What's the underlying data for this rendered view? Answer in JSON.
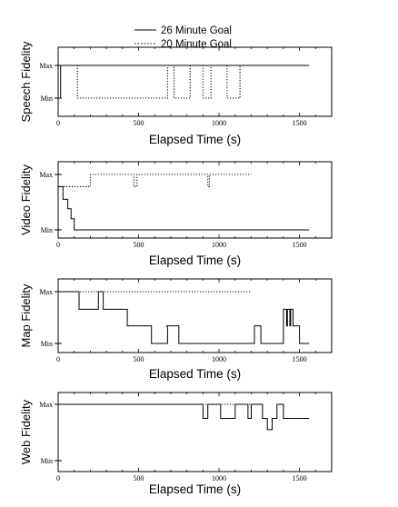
{
  "legend": {
    "items": [
      {
        "label": "26 Minute Goal",
        "style": "solid"
      },
      {
        "label": "20 Minute Goal",
        "style": "dotted"
      }
    ]
  },
  "chart_data": [
    {
      "type": "line",
      "ylabel": "Speech Fidelity",
      "xlabel": "Elapsed Time (s)",
      "xlim": [
        0,
        1700
      ],
      "xticks": [
        0,
        500,
        1000,
        1500
      ],
      "ylevels": [
        "Min",
        "Max"
      ],
      "series": [
        {
          "name": "26 Minute Goal",
          "style": "solid",
          "x": [
            0,
            15,
            15,
            1560
          ],
          "y": [
            0,
            0,
            1,
            1
          ]
        },
        {
          "name": "20 Minute Goal",
          "style": "dotted",
          "x": [
            0,
            120,
            120,
            680,
            680,
            720,
            720,
            820,
            820,
            900,
            900,
            950,
            950,
            1050,
            1050,
            1130,
            1130,
            1200
          ],
          "y": [
            1,
            1,
            0,
            0,
            1,
            1,
            0,
            0,
            1,
            1,
            0,
            0,
            1,
            1,
            0,
            0,
            1,
            1
          ]
        }
      ]
    },
    {
      "type": "line",
      "ylabel": "Video Fidelity",
      "xlabel": "Elapsed Time (s)",
      "xlim": [
        0,
        1700
      ],
      "xticks": [
        0,
        500,
        1000,
        1500
      ],
      "ylevels": [
        "Min",
        "Max"
      ],
      "series": [
        {
          "name": "26 Minute Goal",
          "style": "solid",
          "x": [
            0,
            30,
            30,
            60,
            60,
            80,
            80,
            100,
            100,
            1560
          ],
          "y": [
            0.78,
            0.78,
            0.55,
            0.55,
            0.38,
            0.38,
            0.2,
            0.2,
            0,
            0
          ]
        },
        {
          "name": "20 Minute Goal",
          "style": "dotted",
          "x": [
            0,
            200,
            200,
            470,
            470,
            490,
            490,
            930,
            930,
            940,
            940,
            1200
          ],
          "y": [
            0.78,
            0.78,
            1,
            1,
            0.78,
            0.78,
            1,
            1,
            0.78,
            0.78,
            1,
            1
          ]
        }
      ]
    },
    {
      "type": "line",
      "ylabel": "Map Fidelity",
      "xlabel": "Elapsed Time (s)",
      "xlim": [
        0,
        1700
      ],
      "xticks": [
        0,
        500,
        1000,
        1500
      ],
      "ylevels": [
        "Min",
        "Max"
      ],
      "series": [
        {
          "name": "26 Minute Goal",
          "style": "solid",
          "x": [
            0,
            130,
            130,
            250,
            250,
            280,
            280,
            430,
            430,
            580,
            580,
            680,
            680,
            670,
            670,
            750,
            750,
            1220,
            1220,
            1260,
            1260,
            1400,
            1400,
            1420,
            1420,
            1425,
            1425,
            1440,
            1440,
            1445,
            1445,
            1460,
            1460,
            1500,
            1500,
            1560
          ],
          "y": [
            1,
            1,
            0.66,
            0.66,
            1,
            1,
            0.66,
            0.66,
            0.34,
            0.34,
            0,
            0,
            0.34,
            0.34,
            0.34,
            0.34,
            0,
            0,
            0.34,
            0.34,
            0,
            0,
            0.66,
            0.66,
            0.34,
            0.34,
            0.66,
            0.66,
            0.34,
            0.34,
            0.66,
            0.66,
            0.34,
            0.34,
            0,
            0
          ]
        },
        {
          "name": "20 Minute Goal",
          "style": "dotted",
          "x": [
            0,
            1200
          ],
          "y": [
            1,
            1
          ]
        }
      ]
    },
    {
      "type": "line",
      "ylabel": "Web Fidelity",
      "xlabel": "Elapsed Time (s)",
      "xlim": [
        0,
        1700
      ],
      "xticks": [
        0,
        500,
        1000,
        1500
      ],
      "ylevels": [
        "Min",
        "Max"
      ],
      "series": [
        {
          "name": "26 Minute Goal",
          "style": "solid",
          "x": [
            0,
            900,
            900,
            930,
            930,
            1010,
            1010,
            1100,
            1100,
            1180,
            1180,
            1200,
            1200,
            1270,
            1270,
            1300,
            1300,
            1330,
            1330,
            1360,
            1360,
            1400,
            1400,
            1500,
            1500,
            1560
          ],
          "y": [
            1,
            1,
            0.75,
            0.75,
            1,
            1,
            0.75,
            0.75,
            1,
            1,
            0.75,
            0.75,
            1,
            1,
            0.75,
            0.75,
            0.55,
            0.55,
            0.75,
            0.75,
            1,
            1,
            0.75,
            0.75,
            0.75,
            0.75
          ]
        },
        {
          "name": "20 Minute Goal",
          "style": "dotted",
          "x": [
            0,
            1200
          ],
          "y": [
            1,
            1
          ]
        }
      ]
    }
  ]
}
